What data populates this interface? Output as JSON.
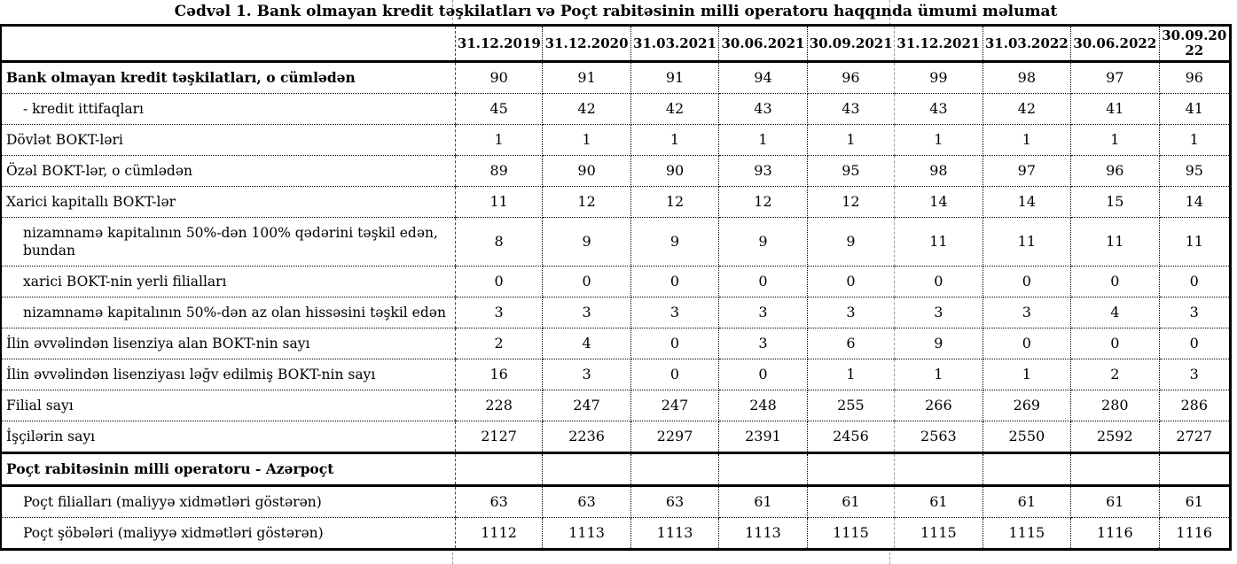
{
  "title": "Cədvəl 1. Bank olmayan kredit təşkilatları və Poçt rabitəsinin milli operatoru haqqında ümumi məlumat",
  "colors": {
    "border": "#000000",
    "page_break_line": "#999999",
    "background": "#ffffff",
    "text": "#000000"
  },
  "table": {
    "corner_label": "",
    "columns": [
      "31.12.2019",
      "31.12.2020",
      "31.03.2021",
      "30.06.2021",
      "30.09.2021",
      "31.12.2021",
      "31.03.2022",
      "30.06.2022",
      "30.09.2022"
    ],
    "page_break_after_column_index": 4,
    "rows": [
      {
        "label": "Bank olmayan kredit təşkilatları, o cümlədən",
        "bold": true,
        "indent": 0,
        "section": false,
        "values": [
          "90",
          "91",
          "91",
          "94",
          "96",
          "99",
          "98",
          "97",
          "96"
        ]
      },
      {
        "label": "- kredit ittifaqları",
        "bold": false,
        "indent": 1,
        "section": false,
        "values": [
          "45",
          "42",
          "42",
          "43",
          "43",
          "43",
          "42",
          "41",
          "41"
        ]
      },
      {
        "label": "Dövlət BOKT-ləri",
        "bold": false,
        "indent": 0,
        "section": false,
        "values": [
          "1",
          "1",
          "1",
          "1",
          "1",
          "1",
          "1",
          "1",
          "1"
        ]
      },
      {
        "label": "Özəl BOKT-lər, o cümlədən",
        "bold": false,
        "indent": 0,
        "section": false,
        "values": [
          "89",
          "90",
          "90",
          "93",
          "95",
          "98",
          "97",
          "96",
          "95"
        ]
      },
      {
        "label": "Xarici kapitallı BOKT-lər",
        "bold": false,
        "indent": 0,
        "section": false,
        "values": [
          "11",
          "12",
          "12",
          "12",
          "12",
          "14",
          "14",
          "15",
          "14"
        ]
      },
      {
        "label": "nizamnamə kapitalının 50%-dən 100% qədərini təşkil edən,\nbundan",
        "bold": false,
        "indent": 1,
        "section": false,
        "values": [
          "8",
          "9",
          "9",
          "9",
          "9",
          "11",
          "11",
          "11",
          "11"
        ]
      },
      {
        "label": "xarici BOKT-nin yerli filialları",
        "bold": false,
        "indent": 1,
        "section": false,
        "values": [
          "0",
          "0",
          "0",
          "0",
          "0",
          "0",
          "0",
          "0",
          "0"
        ]
      },
      {
        "label": "nizamnamə kapitalının 50%-dən az olan hissəsini  təşkil edən",
        "bold": false,
        "indent": 1,
        "section": false,
        "values": [
          "3",
          "3",
          "3",
          "3",
          "3",
          "3",
          "3",
          "4",
          "3"
        ]
      },
      {
        "label": "İlin əvvəlindən lisenziya alan BOKT-nin sayı",
        "bold": false,
        "indent": 0,
        "section": false,
        "values": [
          "2",
          "4",
          "0",
          "3",
          "6",
          "9",
          "0",
          "0",
          "0"
        ]
      },
      {
        "label": "İlin əvvəlindən lisenziyası ləğv edilmiş BOKT-nin sayı",
        "bold": false,
        "indent": 0,
        "section": false,
        "values": [
          "16",
          "3",
          "0",
          "0",
          "1",
          "1",
          "1",
          "2",
          "3"
        ]
      },
      {
        "label": "Filial sayı",
        "bold": false,
        "indent": 0,
        "section": false,
        "values": [
          "228",
          "247",
          "247",
          "248",
          "255",
          "266",
          "269",
          "280",
          "286"
        ]
      },
      {
        "label": "İşçilərin sayı",
        "bold": false,
        "indent": 0,
        "section": false,
        "values": [
          "2127",
          "2236",
          "2297",
          "2391",
          "2456",
          "2563",
          "2550",
          "2592",
          "2727"
        ]
      },
      {
        "label": "Poçt rabitəsinin milli operatoru - Azərpoçt",
        "bold": true,
        "indent": 0,
        "section": true,
        "values": [
          "",
          "",
          "",
          "",
          "",
          "",
          "",
          "",
          ""
        ]
      },
      {
        "label": "Poçt filialları (maliyyə xidmətləri göstərən)",
        "bold": false,
        "indent": 1,
        "section": false,
        "values": [
          "63",
          "63",
          "63",
          "61",
          "61",
          "61",
          "61",
          "61",
          "61"
        ]
      },
      {
        "label": "Poçt şöbələri (maliyyə xidmətləri göstərən)",
        "bold": false,
        "indent": 1,
        "section": false,
        "values": [
          "1112",
          "1113",
          "1113",
          "1113",
          "1115",
          "1115",
          "1115",
          "1116",
          "1116"
        ]
      }
    ]
  }
}
